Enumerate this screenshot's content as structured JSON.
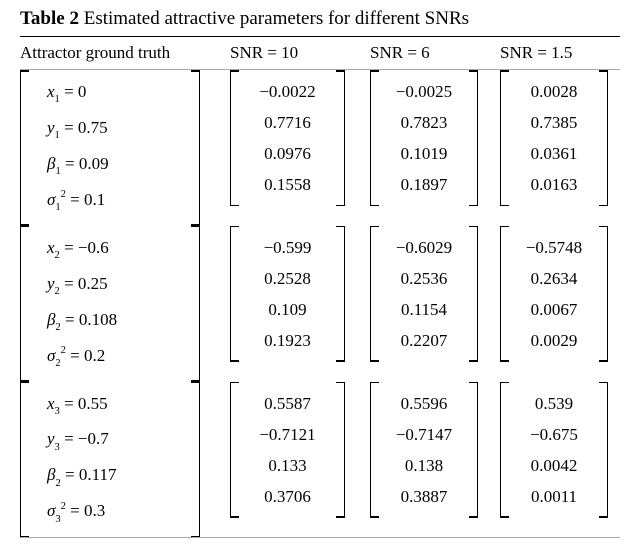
{
  "table": {
    "label": "Table 2",
    "caption": "Estimated attractive parameters for different SNRs",
    "title_fontsize": 19,
    "body_fontsize": 17,
    "header": {
      "col0": "Attractor ground truth",
      "col1": "SNR = 10",
      "col2": "SNR = 6",
      "col3": "SNR = 1.5"
    },
    "groups": [
      {
        "truth_values": [
          "0",
          "0.75",
          "0.09",
          "0.1"
        ],
        "subscript": "1",
        "snr10": [
          "−0.0022",
          "0.7716",
          "0.0976",
          "0.1558"
        ],
        "snr6": [
          "−0.0025",
          "0.7823",
          "0.1019",
          "0.1897"
        ],
        "snr1_5": [
          "0.0028",
          "0.7385",
          "0.0361",
          "0.0163"
        ]
      },
      {
        "truth_values": [
          "−0.6",
          "0.25",
          "0.108",
          "0.2"
        ],
        "subscript": "2",
        "snr10": [
          "−0.599",
          "0.2528",
          "0.109",
          "0.1923"
        ],
        "snr6": [
          "−0.6029",
          "0.2536",
          "0.1154",
          "0.2207"
        ],
        "snr1_5": [
          "−0.5748",
          "0.2634",
          "0.0067",
          "0.0029"
        ]
      },
      {
        "truth_values": [
          "0.55",
          "−0.7",
          "0.117",
          "0.3"
        ],
        "subscript_xy": "3",
        "subscript_beta": "2",
        "subscript_sigma": "3",
        "snr10": [
          "0.5587",
          "−0.7121",
          "0.133",
          "0.3706"
        ],
        "snr6": [
          "0.5596",
          "−0.7147",
          "0.138",
          "0.3887"
        ],
        "snr1_5": [
          "0.539",
          "−0.675",
          "0.0042",
          "0.0011"
        ]
      }
    ],
    "colors": {
      "text": "#000000",
      "rule_strong": "#000000",
      "rule_light": "#aaaaaa",
      "background": "#ffffff"
    }
  }
}
